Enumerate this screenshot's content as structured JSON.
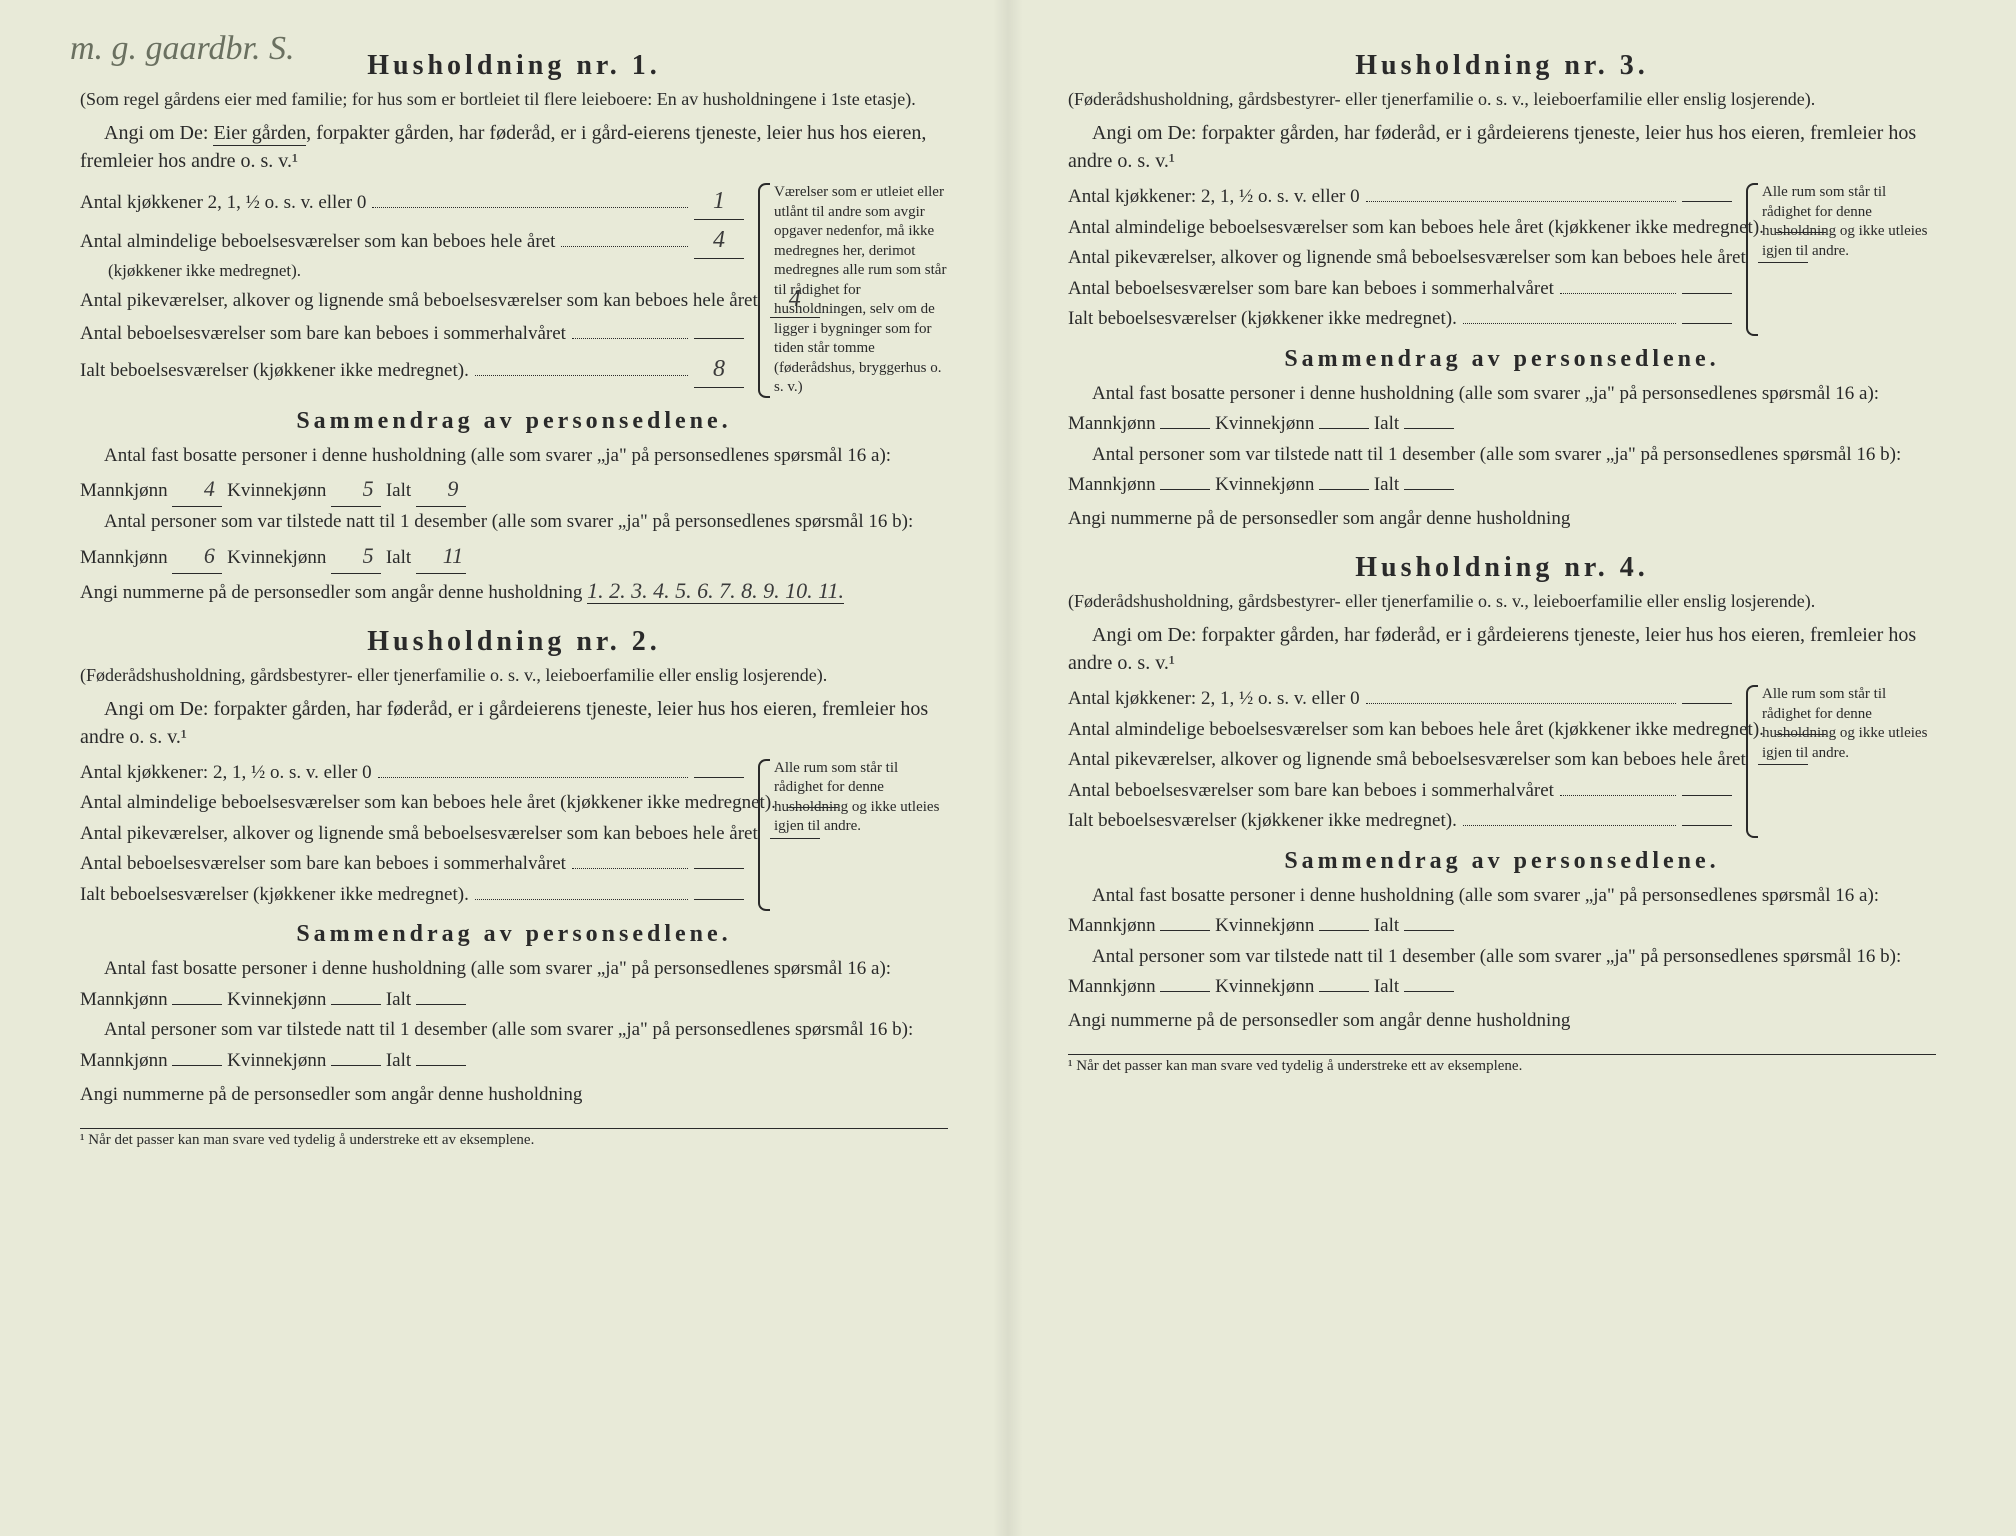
{
  "handwritten_top": "m. g. gaardbr. S.",
  "households": [
    {
      "title": "Husholdning nr. 1.",
      "subtitle": "(Som regel gårdens eier med familie; for hus som er bortleiet til flere leieboere: En av husholdningene i 1ste etasje).",
      "instruction_prefix": "Angi om De:",
      "instruction_main": "Eier gården, forpakter gården, har føderåd, er i gård-eierens tjeneste, leier hus hos eieren, fremleier hos andre o. s. v.¹",
      "underline_phrase": "Eier gården",
      "rooms": {
        "kitchens_label": "Antal kjøkkener 2, 1, ½ o. s. v. eller 0",
        "kitchens_value": "1",
        "living_label": "Antal almindelige beboelsesværelser som kan beboes hele året",
        "living_sub": "(kjøkkener ikke medregnet).",
        "living_value": "4",
        "small_label": "Antal pikeværelser, alkover og lignende små beboelsesværelser som kan beboes hele året",
        "small_value": "4",
        "summer_label": "Antal beboelsesværelser som bare kan beboes i sommerhalvåret",
        "summer_value": "",
        "total_label": "Ialt beboelsesværelser (kjøkkener ikke medregnet).",
        "total_value": "8"
      },
      "side_note": "Værelser som er utleiet eller utlånt til andre som avgir opgaver nedenfor, må ikke medregnes her, derimot medregnes alle rum som står til rådighet for husholdningen, selv om de ligger i bygninger som for tiden står tomme (føderådshus, bryggerhus o. s. v.)",
      "summary": {
        "title": "Sammendrag av personsedlene.",
        "line1": "Antal fast bosatte personer i denne husholdning (alle som svarer „ja\" på personsedlenes spørsmål 16 a): Mannkjønn",
        "m1": "4",
        "k_label": "Kvinnekjønn",
        "k1": "5",
        "i_label": "Ialt",
        "i1": "9",
        "line2": "Antal personer som var tilstede natt til 1 desember (alle som svarer „ja\" på personsedlenes spørsmål 16 b): Mannkjønn",
        "m2": "6",
        "k2": "5",
        "i2": "11",
        "numbers_label": "Angi nummerne på de personsedler som angår denne husholdning",
        "numbers_value": "1. 2. 3. 4. 5. 6. 7. 8. 9. 10. 11."
      }
    },
    {
      "title": "Husholdning nr. 2.",
      "subtitle": "(Føderådshusholdning, gårdsbestyrer- eller tjenerfamilie o. s. v., leieboerfamilie eller enslig losjerende).",
      "instruction_prefix": "Angi om De:",
      "instruction_main": "forpakter gården, har føderåd, er i gårdeierens tjeneste, leier hus hos eieren, fremleier hos andre o. s. v.¹",
      "underline_phrase": "",
      "rooms": {
        "kitchens_label": "Antal kjøkkener: 2, 1, ½ o. s. v. eller 0",
        "kitchens_value": "",
        "living_label": "Antal almindelige beboelsesværelser som kan beboes hele året (kjøkkener ikke medregnet).",
        "living_sub": "",
        "living_value": "",
        "small_label": "Antal pikeværelser, alkover og lignende små beboelsesværelser som kan beboes hele året",
        "small_value": "",
        "summer_label": "Antal beboelsesværelser som bare kan beboes i sommerhalvåret",
        "summer_value": "",
        "total_label": "Ialt beboelsesværelser (kjøkkener ikke medregnet).",
        "total_value": ""
      },
      "side_note": "Alle rum som står til rådighet for denne husholdning og ikke utleies igjen til andre.",
      "summary": {
        "title": "Sammendrag av personsedlene.",
        "line1": "Antal fast bosatte personer i denne husholdning (alle som svarer „ja\" på personsedlenes spørsmål 16 a): Mannkjønn",
        "m1": "",
        "k_label": "Kvinnekjønn",
        "k1": "",
        "i_label": "Ialt",
        "i1": "",
        "line2": "Antal personer som var tilstede natt til 1 desember (alle som svarer „ja\" på personsedlenes spørsmål 16 b): Mannkjønn",
        "m2": "",
        "k2": "",
        "i2": "",
        "numbers_label": "Angi nummerne på de personsedler som angår denne husholdning",
        "numbers_value": ""
      }
    },
    {
      "title": "Husholdning nr. 3.",
      "subtitle": "(Føderådshusholdning, gårdsbestyrer- eller tjenerfamilie o. s. v., leieboerfamilie eller enslig losjerende).",
      "instruction_prefix": "Angi om De:",
      "instruction_main": "forpakter gården, har føderåd, er i gårdeierens tjeneste, leier hus hos eieren, fremleier hos andre o. s. v.¹",
      "underline_phrase": "",
      "rooms": {
        "kitchens_label": "Antal kjøkkener: 2, 1, ½ o. s. v. eller 0",
        "kitchens_value": "",
        "living_label": "Antal almindelige beboelsesværelser som kan beboes hele året (kjøkkener ikke medregnet).",
        "living_sub": "",
        "living_value": "",
        "small_label": "Antal pikeværelser, alkover og lignende små beboelsesværelser som kan beboes hele året",
        "small_value": "",
        "summer_label": "Antal beboelsesværelser som bare kan beboes i sommerhalvåret",
        "summer_value": "",
        "total_label": "Ialt beboelsesværelser (kjøkkener ikke medregnet).",
        "total_value": ""
      },
      "side_note": "Alle rum som står til rådighet for denne husholdning og ikke utleies igjen til andre.",
      "summary": {
        "title": "Sammendrag av personsedlene.",
        "line1": "Antal fast bosatte personer i denne husholdning (alle som svarer „ja\" på personsedlenes spørsmål 16 a): Mannkjønn",
        "m1": "",
        "k_label": "Kvinnekjønn",
        "k1": "",
        "i_label": "Ialt",
        "i1": "",
        "line2": "Antal personer som var tilstede natt til 1 desember (alle som svarer „ja\" på personsedlenes spørsmål 16 b): Mannkjønn",
        "m2": "",
        "k2": "",
        "i2": "",
        "numbers_label": "Angi nummerne på de personsedler som angår denne husholdning",
        "numbers_value": ""
      }
    },
    {
      "title": "Husholdning nr. 4.",
      "subtitle": "(Føderådshusholdning, gårdsbestyrer- eller tjenerfamilie o. s. v., leieboerfamilie eller enslig losjerende).",
      "instruction_prefix": "Angi om De:",
      "instruction_main": "forpakter gården, har føderåd, er i gårdeierens tjeneste, leier hus hos eieren, fremleier hos andre o. s. v.¹",
      "underline_phrase": "",
      "rooms": {
        "kitchens_label": "Antal kjøkkener: 2, 1, ½ o. s. v. eller 0",
        "kitchens_value": "",
        "living_label": "Antal almindelige beboelsesværelser som kan beboes hele året (kjøkkener ikke medregnet).",
        "living_sub": "",
        "living_value": "",
        "small_label": "Antal pikeværelser, alkover og lignende små beboelsesværelser som kan beboes hele året",
        "small_value": "",
        "summer_label": "Antal beboelsesværelser som bare kan beboes i sommerhalvåret",
        "summer_value": "",
        "total_label": "Ialt beboelsesværelser (kjøkkener ikke medregnet).",
        "total_value": ""
      },
      "side_note": "Alle rum som står til rådighet for denne husholdning og ikke utleies igjen til andre.",
      "summary": {
        "title": "Sammendrag av personsedlene.",
        "line1": "Antal fast bosatte personer i denne husholdning (alle som svarer „ja\" på personsedlenes spørsmål 16 a): Mannkjønn",
        "m1": "",
        "k_label": "Kvinnekjønn",
        "k1": "",
        "i_label": "Ialt",
        "i1": "",
        "line2": "Antal personer som var tilstede natt til 1 desember (alle som svarer „ja\" på personsedlenes spørsmål 16 b): Mannkjønn",
        "m2": "",
        "k2": "",
        "i2": "",
        "numbers_label": "Angi nummerne på de personsedler som angår denne husholdning",
        "numbers_value": ""
      }
    }
  ],
  "footnote": "¹ Når det passer kan man svare ved tydelig å understreke ett av eksemplene.",
  "colors": {
    "background": "#e8ead8",
    "text": "#2a2a2a",
    "handwriting": "#6a7060"
  }
}
